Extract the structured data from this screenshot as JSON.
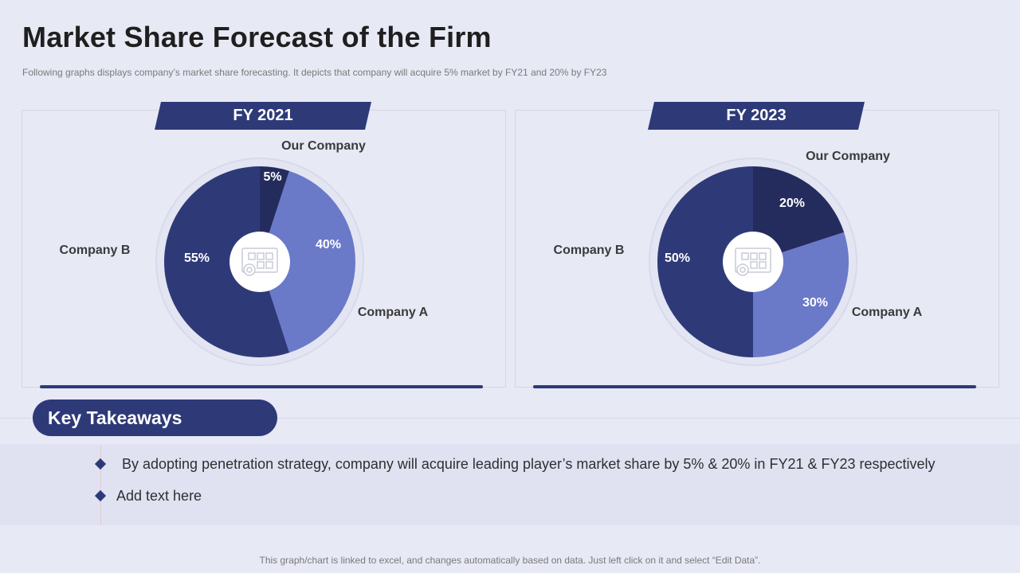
{
  "title": "Market Share Forecast of the Firm",
  "subtitle": "Following graphs displays company’s market share forecasting. It depicts that company will acquire 5% market by FY21 and 20% by FY23",
  "colors": {
    "our_company": "#242c5e",
    "company_a": "#6b79c9",
    "company_b": "#2e3a78",
    "accent": "#2e3a78"
  },
  "chart_data": [
    {
      "type": "pie",
      "title": "FY 2021",
      "labels": [
        "Our Company",
        "Company A",
        "Company B"
      ],
      "values": [
        5,
        40,
        55
      ],
      "value_labels": [
        "5%",
        "40%",
        "55%"
      ],
      "center_icon": "blueprint-gear-icon"
    },
    {
      "type": "pie",
      "title": "FY 2023",
      "labels": [
        "Our Company",
        "Company A",
        "Company B"
      ],
      "values": [
        20,
        30,
        50
      ],
      "value_labels": [
        "20%",
        "30%",
        "50%"
      ],
      "center_icon": "blueprint-gear-icon"
    }
  ],
  "takeaways": {
    "heading": "Key Takeaways",
    "items": [
      "By adopting penetration strategy, company will acquire leading player’s market share by 5% & 20% in FY21 & FY23 respectively",
      "Add text here"
    ]
  },
  "footer": "This graph/chart is linked to excel, and changes automatically based on data. Just left click on it and select “Edit Data”."
}
